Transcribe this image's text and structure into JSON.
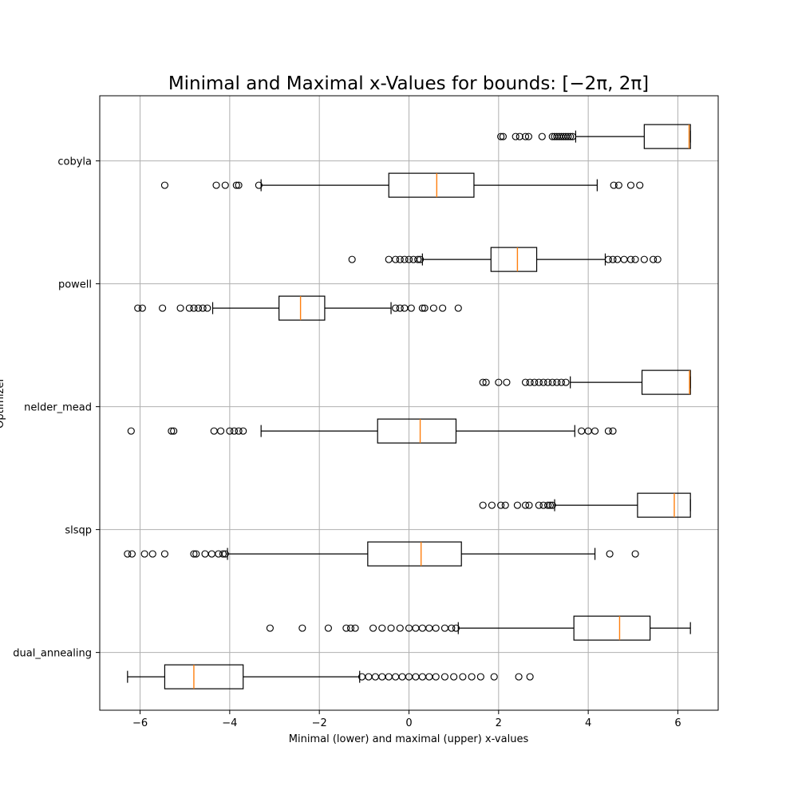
{
  "chart_data": {
    "type": "boxplot",
    "orientation": "horizontal",
    "title": "Minimal and Maximal x-Values for bounds: [−2π, 2π]",
    "xlabel": "Minimal (lower) and maximal (upper) x-values",
    "ylabel": "Optimizer",
    "xlim": [
      -6.9,
      6.9
    ],
    "xticks": [
      -6,
      -4,
      -2,
      0,
      2,
      4,
      6
    ],
    "xtick_labels": [
      "−6",
      "−4",
      "−2",
      "0",
      "2",
      "4",
      "6"
    ],
    "grid": true,
    "median_color": "#ff7f0e",
    "categories": [
      "cobyla",
      "powell",
      "nelder_mead",
      "slsqp",
      "dual_annealing"
    ],
    "boxes": [
      {
        "optimizer": "cobyla",
        "series": "upper",
        "whislo": 3.72,
        "q1": 5.25,
        "med": 6.25,
        "q3": 6.28,
        "whishi": 6.28,
        "fliers": [
          2.05,
          2.1,
          2.38,
          2.47,
          2.6,
          2.67,
          2.97,
          3.2,
          3.25,
          3.3,
          3.35,
          3.4,
          3.45,
          3.5,
          3.55,
          3.6,
          3.65
        ]
      },
      {
        "optimizer": "cobyla",
        "series": "lower",
        "whislo": -3.3,
        "q1": -0.45,
        "med": 0.62,
        "q3": 1.45,
        "whishi": 4.2,
        "fliers": [
          -5.45,
          -4.3,
          -4.1,
          -3.85,
          -3.8,
          -3.35,
          4.57,
          4.68,
          4.95,
          5.15
        ]
      },
      {
        "optimizer": "powell",
        "series": "upper",
        "whislo": 0.3,
        "q1": 1.83,
        "med": 2.42,
        "q3": 2.85,
        "whishi": 4.38,
        "fliers": [
          -1.27,
          -0.45,
          -0.3,
          -0.2,
          -0.1,
          0.0,
          0.1,
          0.2,
          0.25,
          4.45,
          4.55,
          4.65,
          4.8,
          4.95,
          5.05,
          5.25,
          5.45,
          5.55
        ]
      },
      {
        "optimizer": "powell",
        "series": "lower",
        "whislo": -4.38,
        "q1": -2.9,
        "med": -2.42,
        "q3": -1.88,
        "whishi": -0.4,
        "fliers": [
          -6.05,
          -5.95,
          -5.5,
          -5.1,
          -4.9,
          -4.8,
          -4.7,
          -4.6,
          -4.5,
          -0.3,
          -0.2,
          -0.1,
          0.05,
          0.3,
          0.35,
          0.55,
          0.75,
          1.1
        ]
      },
      {
        "optimizer": "nelder_mead",
        "series": "upper",
        "whislo": 3.6,
        "q1": 5.2,
        "med": 6.26,
        "q3": 6.28,
        "whishi": 6.28,
        "fliers": [
          1.65,
          1.72,
          2.0,
          2.18,
          2.6,
          2.7,
          2.8,
          2.9,
          3.0,
          3.1,
          3.2,
          3.3,
          3.4,
          3.5
        ]
      },
      {
        "optimizer": "nelder_mead",
        "series": "lower",
        "whislo": -3.3,
        "q1": -0.7,
        "med": 0.25,
        "q3": 1.05,
        "whishi": 3.7,
        "fliers": [
          -6.2,
          -5.3,
          -5.25,
          -4.35,
          -4.2,
          -4.0,
          -3.9,
          -3.8,
          -3.7,
          3.85,
          4.0,
          4.15,
          4.45,
          4.55
        ]
      },
      {
        "optimizer": "slsqp",
        "series": "upper",
        "whislo": 3.25,
        "q1": 5.1,
        "med": 5.92,
        "q3": 6.28,
        "whishi": 6.28,
        "fliers": [
          1.65,
          1.85,
          2.05,
          2.15,
          2.42,
          2.6,
          2.68,
          2.9,
          3.0,
          3.1,
          3.15,
          3.2
        ]
      },
      {
        "optimizer": "slsqp",
        "series": "lower",
        "whislo": -4.05,
        "q1": -0.92,
        "med": 0.27,
        "q3": 1.17,
        "whishi": 4.15,
        "fliers": [
          -6.28,
          -6.18,
          -5.9,
          -5.72,
          -5.45,
          -4.8,
          -4.75,
          -4.55,
          -4.4,
          -4.25,
          -4.15,
          -4.1,
          4.48,
          5.05
        ]
      },
      {
        "optimizer": "dual_annealing",
        "series": "upper",
        "whislo": 1.1,
        "q1": 3.68,
        "med": 4.7,
        "q3": 5.38,
        "whishi": 6.28,
        "fliers": [
          -3.1,
          -2.38,
          -1.8,
          -1.4,
          -1.3,
          -1.2,
          -0.8,
          -0.6,
          -0.4,
          -0.2,
          0.0,
          0.15,
          0.3,
          0.45,
          0.6,
          0.8,
          0.95,
          1.05
        ]
      },
      {
        "optimizer": "dual_annealing",
        "series": "lower",
        "whislo": -6.28,
        "q1": -5.45,
        "med": -4.8,
        "q3": -3.7,
        "whishi": -1.1,
        "fliers": [
          -1.05,
          -0.9,
          -0.75,
          -0.6,
          -0.45,
          -0.3,
          -0.15,
          0.0,
          0.15,
          0.3,
          0.45,
          0.6,
          0.8,
          1.0,
          1.2,
          1.4,
          1.6,
          1.9,
          2.45,
          2.7
        ]
      }
    ]
  }
}
